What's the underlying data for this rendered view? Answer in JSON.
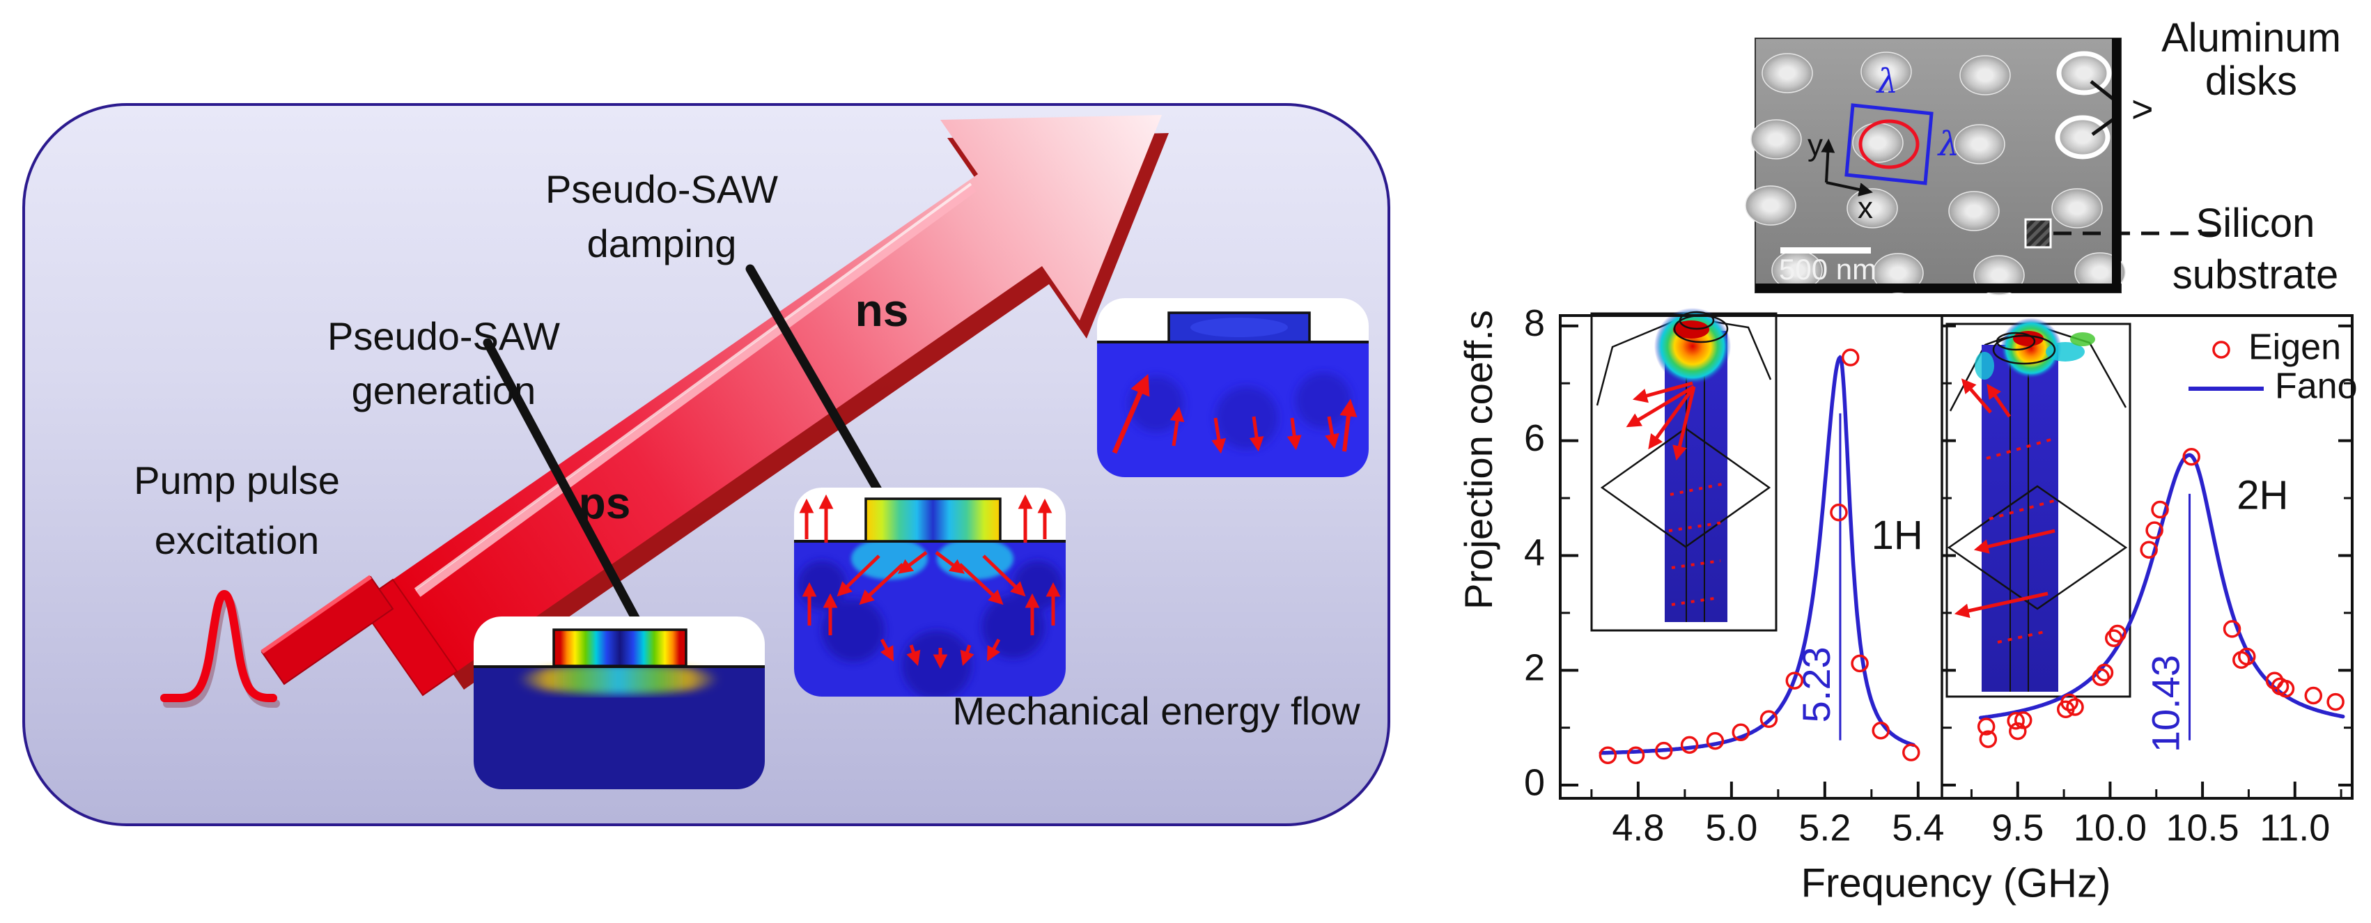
{
  "left_panel": {
    "pump_line1": "Pump pulse",
    "pump_line2": "excitation",
    "generation_line1": "Pseudo-SAW",
    "generation_line2": "generation",
    "damping_line1": "Pseudo-SAW",
    "damping_line2": "damping",
    "ps": "ps",
    "ns": "ns",
    "energy_flow": "Mechanical energy flow"
  },
  "sem": {
    "scale_bar": "500 nm",
    "lambda_top": "λ",
    "lambda_right": "λ",
    "axis_x": "x",
    "axis_y": "y",
    "label_aluminum_line1": "Aluminum",
    "label_aluminum_line2": "disks",
    "label_silicon_line1": "Silicon",
    "label_silicon_line2": "substrate",
    "pointer_chevron": ">"
  },
  "colors": {
    "fano_blue": "#2a22cc",
    "eigen_red": "#ee1111",
    "arrow_red": "#e60016",
    "panel_border": "#2b1a8e",
    "substrate_navy": "#1c1a96"
  },
  "chart_data": {
    "type": "line+scatter",
    "title": "",
    "xlabel": "Frequency (GHz)",
    "ylabel": "Projection coeff.s",
    "ylim": [
      -0.23,
      8.18
    ],
    "yticks": [
      0,
      2,
      4,
      6,
      8
    ],
    "y_minor_values": [
      1,
      3,
      5,
      7
    ],
    "grid": false,
    "legend_position": "top-right",
    "legend": [
      {
        "label": "Eigen",
        "type": "scatter",
        "color": "#ee1111"
      },
      {
        "label": "Fano",
        "type": "line",
        "color": "#2a22cc"
      }
    ],
    "panels": [
      {
        "mode": "1H",
        "peak_annotation": "5.23",
        "xlim": [
          4.633,
          5.451
        ],
        "xticks": [
          "4.8",
          "5.0",
          "5.2",
          "5.4"
        ],
        "xtick_vals": [
          4.8,
          5.0,
          5.2,
          5.4
        ],
        "x_minor_step": 0.1,
        "fano": {
          "f0": 5.233,
          "base": 0.5,
          "amp": 6.95,
          "gamma_left": 0.048,
          "gamma_right": 0.027,
          "fmin": 4.72,
          "fmax": 5.39
        },
        "eigen": [
          [
            4.735,
            0.52
          ],
          [
            4.795,
            0.52
          ],
          [
            4.855,
            0.6
          ],
          [
            4.91,
            0.7
          ],
          [
            4.965,
            0.77
          ],
          [
            5.02,
            0.92
          ],
          [
            5.08,
            1.15
          ],
          [
            5.135,
            1.82
          ],
          [
            5.23,
            4.75
          ],
          [
            5.255,
            7.45
          ],
          [
            5.275,
            2.12
          ],
          [
            5.32,
            0.95
          ],
          [
            5.385,
            0.57
          ]
        ]
      },
      {
        "mode": "2H",
        "peak_annotation": "10.43",
        "xlim": [
          9.09,
          11.31
        ],
        "xticks": [
          "9.5",
          "10.0",
          "10.5",
          "11.0"
        ],
        "xtick_vals": [
          9.5,
          10.0,
          10.5,
          11.0
        ],
        "x_minor_step": 0.25,
        "fano": {
          "f0": 10.43,
          "base": 0.93,
          "amp": 4.82,
          "gamma_left": 0.26,
          "gamma_right": 0.2,
          "fmin": 9.3,
          "fmax": 11.26
        },
        "eigen": [
          [
            9.33,
            1.02
          ],
          [
            9.34,
            0.8
          ],
          [
            9.49,
            1.12
          ],
          [
            9.5,
            0.94
          ],
          [
            9.53,
            1.13
          ],
          [
            9.76,
            1.32
          ],
          [
            9.78,
            1.44
          ],
          [
            9.81,
            1.36
          ],
          [
            9.95,
            1.88
          ],
          [
            9.97,
            1.96
          ],
          [
            10.02,
            2.56
          ],
          [
            10.04,
            2.64
          ],
          [
            10.21,
            4.1
          ],
          [
            10.24,
            4.44
          ],
          [
            10.27,
            4.8
          ],
          [
            10.44,
            5.72
          ],
          [
            10.66,
            2.72
          ],
          [
            10.71,
            2.18
          ],
          [
            10.74,
            2.24
          ],
          [
            10.89,
            1.82
          ],
          [
            10.92,
            1.72
          ],
          [
            10.95,
            1.68
          ],
          [
            11.1,
            1.56
          ],
          [
            11.22,
            1.45
          ]
        ]
      }
    ]
  }
}
